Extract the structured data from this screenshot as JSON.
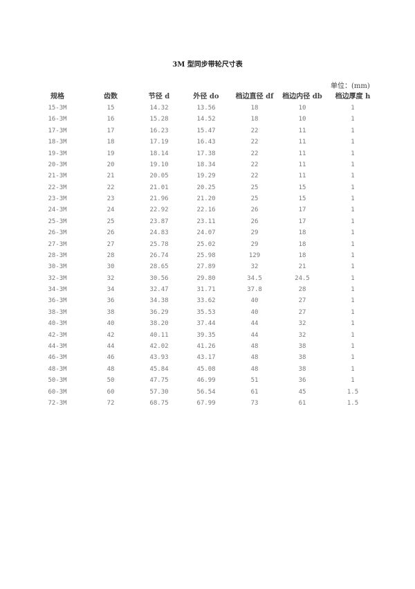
{
  "title": "3M 型同步带轮尺寸表",
  "unit": "单位：(mm)",
  "columns": [
    "规格",
    "齿数",
    "节径 d",
    "外径 do",
    "档边直径 df",
    "档边内径 db",
    "档边厚度 h"
  ],
  "rows": [
    [
      "15-3M",
      "15",
      "14.32",
      "13.56",
      "18",
      "10",
      "1"
    ],
    [
      "16-3M",
      "16",
      "15.28",
      "14.52",
      "18",
      "10",
      "1"
    ],
    [
      "17-3M",
      "17",
      "16.23",
      "15.47",
      "22",
      "11",
      "1"
    ],
    [
      "18-3M",
      "18",
      "17.19",
      "16.43",
      "22",
      "11",
      "1"
    ],
    [
      "19-3M",
      "19",
      "18.14",
      "17.38",
      "22",
      "11",
      "1"
    ],
    [
      "20-3M",
      "20",
      "19.10",
      "18.34",
      "22",
      "11",
      "1"
    ],
    [
      "21-3M",
      "21",
      "20.05",
      "19.29",
      "22",
      "11",
      "1"
    ],
    [
      "22-3M",
      "22",
      "21.01",
      "20.25",
      "25",
      "15",
      "1"
    ],
    [
      "23-3M",
      "23",
      "21.96",
      "21.20",
      "25",
      "15",
      "1"
    ],
    [
      "24-3M",
      "24",
      "22.92",
      "22.16",
      "26",
      "17",
      "1"
    ],
    [
      "25-3M",
      "25",
      "23.87",
      "23.11",
      "26",
      "17",
      "1"
    ],
    [
      "26-3M",
      "26",
      "24.83",
      "24.07",
      "29",
      "18",
      "1"
    ],
    [
      "27-3M",
      "27",
      "25.78",
      "25.02",
      "29",
      "18",
      "1"
    ],
    [
      "28-3M",
      "28",
      "26.74",
      "25.98",
      "129",
      "18",
      "1"
    ],
    [
      "30-3M",
      "30",
      "28.65",
      "27.89",
      "32",
      "21",
      "1"
    ],
    [
      "32-3M",
      "32",
      "30.56",
      "29.80",
      "34.5",
      "24.5",
      "1"
    ],
    [
      "34-3M",
      "34",
      "32.47",
      "31.71",
      "37.8",
      "28",
      "1"
    ],
    [
      "36-3M",
      "36",
      "34.38",
      "33.62",
      "40",
      "27",
      "1"
    ],
    [
      "38-3M",
      "38",
      "36.29",
      "35.53",
      "40",
      "27",
      "1"
    ],
    [
      "40-3M",
      "40",
      "38.20",
      "37.44",
      "44",
      "32",
      "1"
    ],
    [
      "42-3M",
      "42",
      "40.11",
      "39.35",
      "44",
      "32",
      "1"
    ],
    [
      "44-3M",
      "44",
      "42.02",
      "41.26",
      "48",
      "38",
      "1"
    ],
    [
      "46-3M",
      "46",
      "43.93",
      "43.17",
      "48",
      "38",
      "1"
    ],
    [
      "48-3M",
      "48",
      "45.84",
      "45.08",
      "48",
      "38",
      "1"
    ],
    [
      "50-3M",
      "50",
      "47.75",
      "46.99",
      "51",
      "36",
      "1"
    ],
    [
      "60-3M",
      "60",
      "57.30",
      "56.54",
      "61",
      "45",
      "1.5"
    ],
    [
      "72-3M",
      "72",
      "68.75",
      "67.99",
      "73",
      "61",
      "1.5"
    ]
  ]
}
